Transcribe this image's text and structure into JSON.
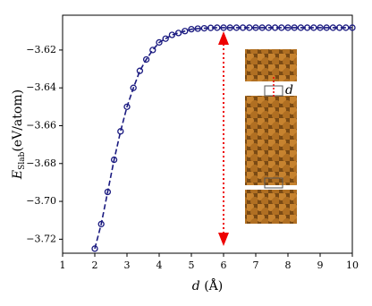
{
  "chart_data": {
    "type": "line",
    "xlabel": {
      "symbol": "d",
      "unit": "(Å)"
    },
    "ylabel": {
      "symbol": "E",
      "subscript": "Slab",
      "unit": "(eV/atom)"
    },
    "annotation": "d",
    "x": [
      2.0,
      2.2,
      2.4,
      2.6,
      2.8,
      3.0,
      3.2,
      3.4,
      3.6,
      3.8,
      4.0,
      4.2,
      4.4,
      4.6,
      4.8,
      5.0,
      5.2,
      5.4,
      5.6,
      5.8,
      6.0,
      6.2,
      6.4,
      6.6,
      6.8,
      7.0,
      7.2,
      7.4,
      7.6,
      7.8,
      8.0,
      8.2,
      8.4,
      8.6,
      8.8,
      9.0,
      9.2,
      9.4,
      9.6,
      9.8,
      10.0
    ],
    "series": [
      {
        "color": "#1a1a80",
        "values": [
          -3.725,
          -3.712,
          -3.695,
          -3.678,
          -3.663,
          -3.65,
          -3.64,
          -3.631,
          -3.625,
          -3.62,
          -3.616,
          -3.614,
          -3.612,
          -3.611,
          -3.61,
          -3.609,
          -3.6087,
          -3.6085,
          -3.6083,
          -3.6082,
          -3.6082,
          -3.6082,
          -3.6082,
          -3.6082,
          -3.6082,
          -3.6082,
          -3.6082,
          -3.6082,
          -3.6082,
          -3.6082,
          -3.6082,
          -3.6082,
          -3.6082,
          -3.6082,
          -3.6082,
          -3.6082,
          -3.6082,
          -3.6082,
          -3.6082,
          -3.6082,
          -3.6082
        ]
      }
    ],
    "xlim": [
      1,
      10
    ],
    "ylim": [
      -3.7274,
      -3.6016
    ],
    "xticks": [
      1,
      2,
      3,
      4,
      5,
      6,
      7,
      8,
      9,
      10
    ],
    "yticks": [
      {
        "value": -3.72,
        "label": "−3.72"
      },
      {
        "value": -3.7,
        "label": "−3.70"
      },
      {
        "value": -3.68,
        "label": "−3.68"
      },
      {
        "value": -3.66,
        "label": "−3.66"
      },
      {
        "value": -3.64,
        "label": "−3.64"
      },
      {
        "value": -3.62,
        "label": "−3.62"
      }
    ]
  }
}
